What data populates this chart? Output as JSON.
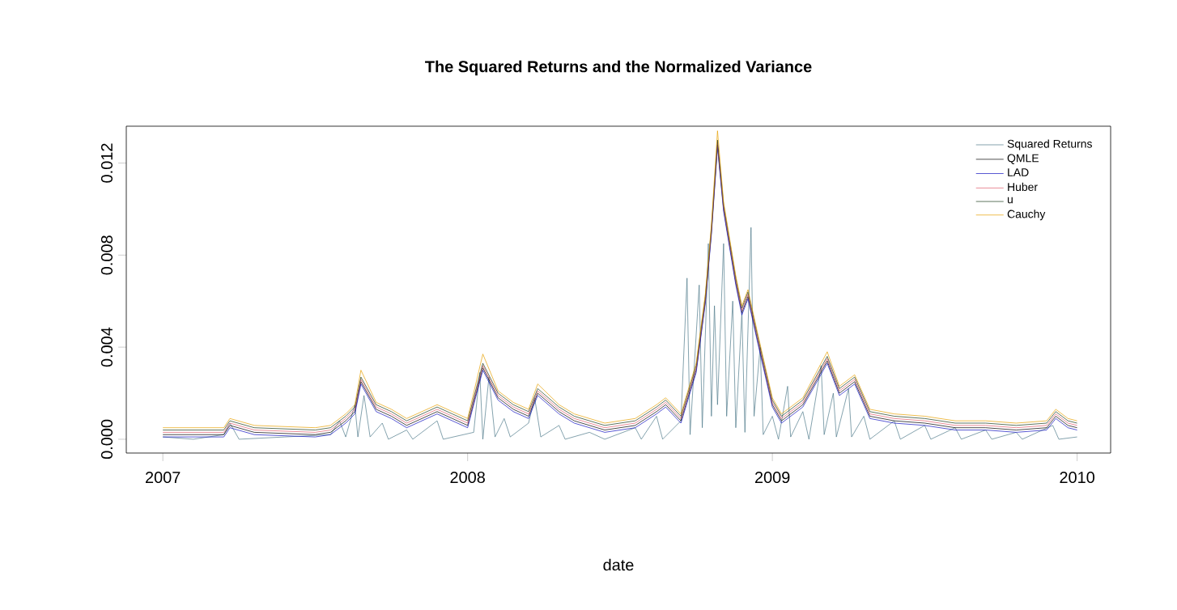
{
  "chart_data": {
    "type": "line",
    "title": "The Squared Returns and the Normalized Variance",
    "xlabel": "date",
    "xlim": [
      2006.88,
      2010.11
    ],
    "xticks": [
      2007,
      2008,
      2009,
      2010
    ],
    "ylim": [
      -0.0006,
      0.0136
    ],
    "yticks": [
      {
        "value": 0,
        "label": "0.000"
      },
      {
        "value": 0.004,
        "label": "0.004"
      },
      {
        "value": 0.008,
        "label": "0.008"
      },
      {
        "value": 0.012,
        "label": "0.012"
      }
    ],
    "legend": "top right",
    "x": [
      2007.0,
      2007.2,
      2007.22,
      2007.3,
      2007.5,
      2007.55,
      2007.6,
      2007.63,
      2007.65,
      2007.7,
      2007.75,
      2007.8,
      2007.9,
      2007.95,
      2008.0,
      2008.05,
      2008.1,
      2008.15,
      2008.2,
      2008.23,
      2008.3,
      2008.35,
      2008.45,
      2008.55,
      2008.62,
      2008.65,
      2008.7,
      2008.75,
      2008.78,
      2008.8,
      2008.82,
      2008.84,
      2008.86,
      2008.88,
      2008.9,
      2008.92,
      2008.95,
      2009.0,
      2009.03,
      2009.1,
      2009.18,
      2009.22,
      2009.27,
      2009.32,
      2009.4,
      2009.5,
      2009.6,
      2009.7,
      2009.8,
      2009.9,
      2009.93,
      2009.97,
      2010.0
    ],
    "series": [
      {
        "name": "Squared Returns",
        "color": "#4f7a8a",
        "x": [
          2007.0,
          2007.1,
          2007.2,
          2007.22,
          2007.25,
          2007.4,
          2007.55,
          2007.58,
          2007.6,
          2007.63,
          2007.64,
          2007.66,
          2007.68,
          2007.72,
          2007.74,
          2007.8,
          2007.82,
          2007.9,
          2007.92,
          2008.02,
          2008.04,
          2008.05,
          2008.07,
          2008.09,
          2008.12,
          2008.14,
          2008.2,
          2008.22,
          2008.24,
          2008.3,
          2008.32,
          2008.4,
          2008.45,
          2008.55,
          2008.57,
          2008.62,
          2008.64,
          2008.7,
          2008.72,
          2008.73,
          2008.76,
          2008.77,
          2008.79,
          2008.8,
          2008.81,
          2008.82,
          2008.84,
          2008.85,
          2008.87,
          2008.88,
          2008.9,
          2008.91,
          2008.93,
          2008.94,
          2008.96,
          2008.97,
          2009.0,
          2009.02,
          2009.05,
          2009.06,
          2009.1,
          2009.12,
          2009.16,
          2009.17,
          2009.2,
          2009.21,
          2009.25,
          2009.26,
          2009.3,
          2009.32,
          2009.4,
          2009.42,
          2009.5,
          2009.52,
          2009.6,
          2009.62,
          2009.7,
          2009.72,
          2009.8,
          2009.82,
          2009.92,
          2009.94,
          2010.0
        ],
        "values": [
          0.0001,
          0.0,
          0.0002,
          0.0007,
          0.0,
          0.0001,
          0.0002,
          0.0008,
          0.0001,
          0.0015,
          0.0001,
          0.0019,
          0.0001,
          0.0007,
          0.0,
          0.0004,
          0.0,
          0.0008,
          0.0,
          0.0003,
          0.0029,
          0.0,
          0.0027,
          0.0001,
          0.0009,
          0.0001,
          0.0007,
          0.0018,
          0.0001,
          0.0006,
          0.0,
          0.0003,
          0.0,
          0.0005,
          0.0,
          0.001,
          0.0,
          0.0008,
          0.007,
          0.0002,
          0.0067,
          0.0005,
          0.0085,
          0.001,
          0.0058,
          0.0015,
          0.0085,
          0.001,
          0.006,
          0.0005,
          0.0055,
          0.0003,
          0.0092,
          0.001,
          0.004,
          0.0002,
          0.001,
          0.0,
          0.0023,
          0.0001,
          0.0012,
          0.0,
          0.0032,
          0.0002,
          0.002,
          0.0001,
          0.0022,
          0.0001,
          0.001,
          0.0,
          0.0008,
          0.0,
          0.0006,
          0.0,
          0.0005,
          0.0,
          0.0004,
          0.0,
          0.0003,
          0.0,
          0.0006,
          0.0,
          0.0001
        ]
      },
      {
        "name": "QMLE",
        "color": "#000000",
        "values": [
          0.0002,
          0.0002,
          0.0006,
          0.0003,
          0.0002,
          0.0003,
          0.0008,
          0.0012,
          0.0025,
          0.0013,
          0.001,
          0.0006,
          0.0012,
          0.0009,
          0.0006,
          0.0031,
          0.0018,
          0.0013,
          0.001,
          0.002,
          0.0012,
          0.0008,
          0.0004,
          0.0006,
          0.0012,
          0.0015,
          0.0008,
          0.003,
          0.006,
          0.009,
          0.0128,
          0.01,
          0.0084,
          0.0068,
          0.0055,
          0.0062,
          0.0044,
          0.0015,
          0.0008,
          0.0015,
          0.0034,
          0.002,
          0.0025,
          0.001,
          0.0008,
          0.0007,
          0.0005,
          0.0005,
          0.0004,
          0.0005,
          0.001,
          0.0006,
          0.0005
        ]
      },
      {
        "name": "LAD",
        "color": "#1010c0",
        "values": [
          0.0001,
          0.0001,
          0.0005,
          0.0002,
          0.0001,
          0.0002,
          0.0007,
          0.0011,
          0.0024,
          0.0012,
          0.0009,
          0.0005,
          0.0011,
          0.0008,
          0.0005,
          0.003,
          0.0017,
          0.0012,
          0.0009,
          0.0019,
          0.0011,
          0.0007,
          0.0003,
          0.0005,
          0.0011,
          0.0014,
          0.0007,
          0.0029,
          0.0059,
          0.0089,
          0.0127,
          0.0099,
          0.0083,
          0.0067,
          0.0054,
          0.0061,
          0.0043,
          0.0014,
          0.0007,
          0.0014,
          0.0033,
          0.0019,
          0.0024,
          0.0009,
          0.0007,
          0.0006,
          0.0004,
          0.0004,
          0.0003,
          0.0004,
          0.0009,
          0.0005,
          0.0004
        ]
      },
      {
        "name": "Huber",
        "color": "#e05a6a",
        "values": [
          0.0003,
          0.0003,
          0.0007,
          0.0004,
          0.0003,
          0.0004,
          0.0009,
          0.0013,
          0.0026,
          0.0014,
          0.0011,
          0.0007,
          0.0013,
          0.001,
          0.0007,
          0.0032,
          0.0019,
          0.0014,
          0.0011,
          0.0021,
          0.0013,
          0.0009,
          0.0005,
          0.0007,
          0.0013,
          0.0016,
          0.0009,
          0.0031,
          0.0061,
          0.0091,
          0.0129,
          0.0101,
          0.0085,
          0.0069,
          0.0056,
          0.0063,
          0.0045,
          0.0016,
          0.0009,
          0.0016,
          0.0035,
          0.0021,
          0.0026,
          0.0011,
          0.0009,
          0.0008,
          0.0006,
          0.0006,
          0.0005,
          0.0006,
          0.0011,
          0.0007,
          0.0006
        ]
      },
      {
        "name": "u",
        "color": "#1a3a1a",
        "values": [
          0.0004,
          0.0004,
          0.0008,
          0.0005,
          0.0004,
          0.0005,
          0.001,
          0.0014,
          0.0027,
          0.0015,
          0.0012,
          0.0008,
          0.0014,
          0.0011,
          0.0008,
          0.0033,
          0.002,
          0.0015,
          0.0012,
          0.0022,
          0.0014,
          0.001,
          0.0006,
          0.0008,
          0.0014,
          0.0017,
          0.001,
          0.0032,
          0.0062,
          0.0092,
          0.013,
          0.0102,
          0.0086,
          0.007,
          0.0057,
          0.0064,
          0.0046,
          0.0017,
          0.001,
          0.0017,
          0.0036,
          0.0022,
          0.0027,
          0.0012,
          0.001,
          0.0009,
          0.0007,
          0.0007,
          0.0006,
          0.0007,
          0.0012,
          0.0008,
          0.0007
        ]
      },
      {
        "name": "Cauchy",
        "color": "#e6a000",
        "values": [
          0.0005,
          0.0005,
          0.0009,
          0.0006,
          0.0005,
          0.0006,
          0.0011,
          0.0015,
          0.003,
          0.0016,
          0.0013,
          0.0009,
          0.0015,
          0.0012,
          0.0009,
          0.0037,
          0.0021,
          0.0016,
          0.0013,
          0.0024,
          0.0015,
          0.0011,
          0.0007,
          0.0009,
          0.0015,
          0.0018,
          0.0011,
          0.0033,
          0.0063,
          0.0093,
          0.0134,
          0.0103,
          0.0087,
          0.0071,
          0.0058,
          0.0065,
          0.0047,
          0.0018,
          0.0011,
          0.0018,
          0.0038,
          0.0023,
          0.0028,
          0.0013,
          0.0011,
          0.001,
          0.0008,
          0.0008,
          0.0007,
          0.0008,
          0.0013,
          0.0009,
          0.0008
        ]
      }
    ]
  }
}
